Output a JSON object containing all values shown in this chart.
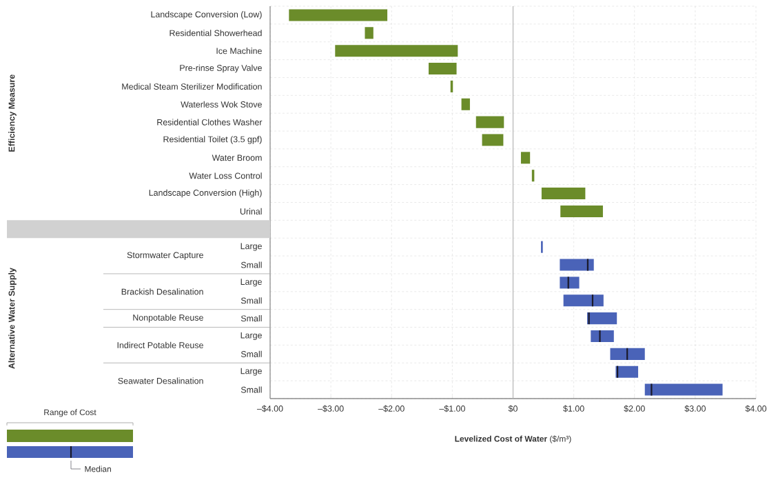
{
  "chart_data": {
    "type": "bar",
    "orientation": "horizontal",
    "categories": [
      "Landscape Conversion (Low)",
      "Residential Showerhead",
      "Ice Machine",
      "Pre-rinse Spray Valve",
      "Medical Steam Sterilizer Modification",
      "Waterless Wok Stove",
      "Residential Clothes Washer",
      "Residential Toilet (3.5 gpf)",
      "Water Broom",
      "Water Loss Control",
      "Landscape Conversion (High)",
      "Urinal",
      null,
      "Large",
      "Small",
      "Large",
      "Small",
      "Small",
      "Large",
      "Small",
      "Large",
      "Small"
    ],
    "series": [
      {
        "name": "Range of Cost",
        "base": [
          -3.69,
          -2.44,
          -2.93,
          -1.39,
          -1.03,
          -0.85,
          -0.61,
          -0.51,
          0.13,
          0.31,
          0.47,
          0.78,
          null,
          0.46,
          null,
          null,
          null,
          null,
          null,
          null,
          null,
          null
        ],
        "values": [
          1.62,
          0.14,
          2.02,
          0.46,
          0.04,
          0.14,
          0.46,
          0.35,
          0.15,
          0.04,
          0.72,
          0.7,
          null,
          0.03,
          null,
          null,
          null,
          null,
          null,
          null,
          null,
          null
        ],
        "colors": [
          "#6b8c2a",
          "#6b8c2a",
          "#6b8c2a",
          "#6b8c2a",
          "#6b8c2a",
          "#6b8c2a",
          "#6b8c2a",
          "#6b8c2a",
          "#6b8c2a",
          "#6b8c2a",
          "#6b8c2a",
          "#6b8c2a",
          null,
          "#4a63b8",
          null,
          null,
          null,
          null,
          null,
          null,
          null,
          null
        ]
      },
      {
        "type": "box",
        "color": "#4a63b8",
        "boxes": [
          null,
          null,
          null,
          null,
          null,
          null,
          null,
          null,
          null,
          null,
          null,
          null,
          null,
          null,
          {
            "low": 0.77,
            "q1": 0.77,
            "median": 1.23,
            "q3": 1.33,
            "high": 1.33
          },
          {
            "low": 0.77,
            "q1": 0.77,
            "median": 0.91,
            "q3": 1.09,
            "high": 1.09
          },
          {
            "low": 0.83,
            "q1": 0.83,
            "median": 1.31,
            "q3": 1.49,
            "high": 1.49
          },
          {
            "low": 1.22,
            "q1": 1.22,
            "median": 1.25,
            "q3": 1.71,
            "high": 1.71
          },
          {
            "low": 1.28,
            "q1": 1.28,
            "median": 1.43,
            "q3": 1.66,
            "high": 1.66
          },
          {
            "low": 1.6,
            "q1": 1.6,
            "median": 1.88,
            "q3": 2.17,
            "high": 2.17
          },
          {
            "low": 1.69,
            "q1": 1.69,
            "median": 1.72,
            "q3": 2.06,
            "high": 2.06
          },
          {
            "low": 2.17,
            "q1": 2.17,
            "median": 2.28,
            "q3": 3.45,
            "high": 3.45
          }
        ]
      }
    ],
    "xlabel": "**Levelized Cost of Water** ($/m³)",
    "xlim": [
      -4,
      4
    ],
    "xticks": [
      {
        "value": -4,
        "label": "–$4.00"
      },
      {
        "value": -3,
        "label": "–$3.00"
      },
      {
        "value": -2,
        "label": "–$2.00"
      },
      {
        "value": -1,
        "label": "–$1.00"
      },
      {
        "value": 0,
        "label": "$0"
      },
      {
        "value": 1,
        "label": "$1.00"
      },
      {
        "value": 2,
        "label": "$2.00"
      },
      {
        "value": 3,
        "label": "$3.00"
      },
      {
        "value": 4,
        "label": "$4.00"
      }
    ],
    "ref_lines": [
      {
        "axis": "x",
        "value": 0,
        "color": "#b4b4b4"
      }
    ],
    "grid": true,
    "legend": "bottom left",
    "annotations": [
      "Efficiency Measure",
      "Alternative Water Supply",
      "Stormwater Capture",
      "Brackish Desalination",
      "Nonpotable Reuse",
      "Indirect Potable Reuse",
      "Seawater Desalination",
      "Median"
    ]
  }
}
